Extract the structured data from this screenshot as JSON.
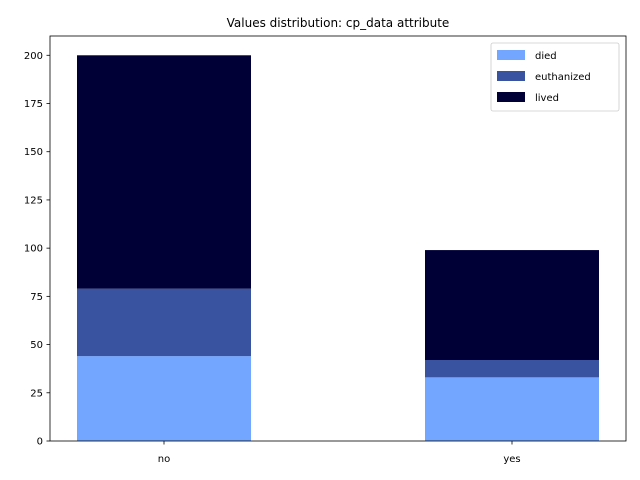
{
  "chart_data": {
    "type": "bar",
    "stacked": true,
    "title": "Values distribution: cp_data attribute",
    "xlabel": "",
    "ylabel": "",
    "categories": [
      "no",
      "yes"
    ],
    "series": [
      {
        "name": "died",
        "values": [
          44,
          33
        ],
        "color": "#73a6ff"
      },
      {
        "name": "euthanized",
        "values": [
          35,
          9
        ],
        "color": "#3a53a1"
      },
      {
        "name": "lived",
        "values": [
          121,
          57
        ],
        "color": "#000037"
      }
    ],
    "ylim": [
      0,
      210
    ],
    "yticks": [
      0,
      25,
      50,
      75,
      100,
      125,
      150,
      175,
      200
    ],
    "legend_position": "top-right",
    "grid": false
  }
}
